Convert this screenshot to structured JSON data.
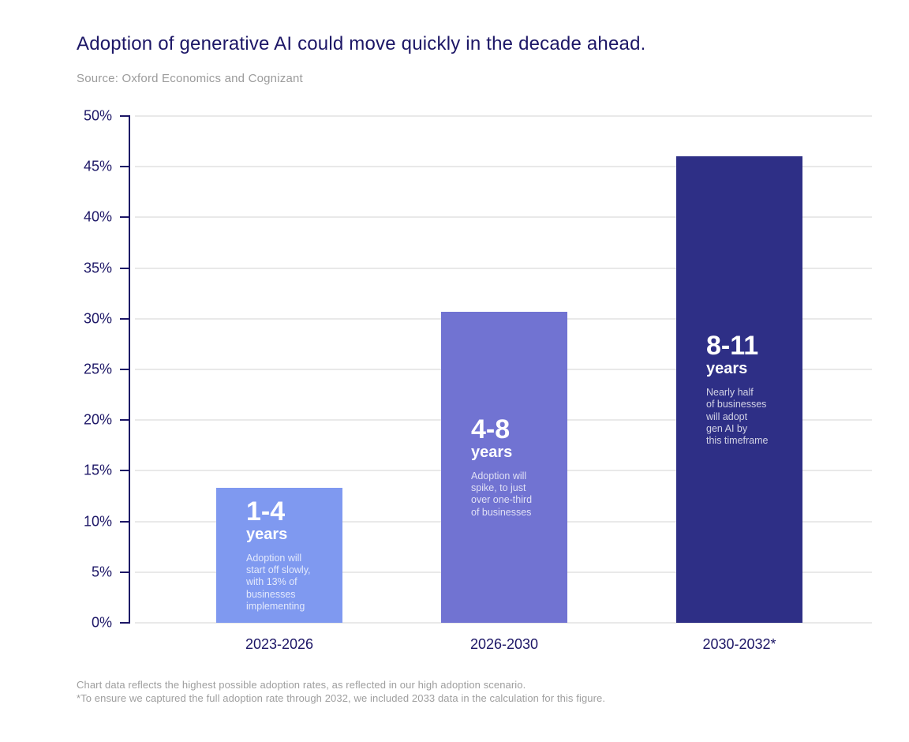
{
  "chart_data": {
    "type": "bar",
    "title": "Adoption of generative AI could move quickly  in the decade ahead.",
    "source": "Source: Oxford Economics and Cognizant",
    "categories": [
      "2023-2026",
      "2026-2030",
      "2030-2032*"
    ],
    "values": [
      13.3,
      30.7,
      46.0
    ],
    "ylim": [
      0,
      50
    ],
    "yticks": [
      "50%",
      "45%",
      "40%",
      "35%",
      "30%",
      "25%",
      "20%",
      "15%",
      "10%",
      "5%",
      "0%"
    ],
    "grid": true,
    "legend": false,
    "annotations": [
      {
        "range": "1-4",
        "unit": "years",
        "note": "Adoption will\nstart off slowly,\nwith 13% of\nbusinesses\nimplementing"
      },
      {
        "range": "4-8",
        "unit": "years",
        "note": "Adoption will\nspike, to just\nover one-third\nof businesses"
      },
      {
        "range": "8-11",
        "unit": "years",
        "note": "Nearly half\nof businesses\nwill adopt\ngen AI by\nthis timeframe"
      }
    ],
    "footnotes": [
      "Chart data reflects the highest possible adoption rates, as reflected in our high adoption scenario.",
      "*To ensure we captured the full adoption rate through 2032, we included 2033 data in the calculation for this figure."
    ]
  },
  "colors": {
    "bars": [
      "#7f99f0",
      "#7173d2",
      "#2e2f86"
    ],
    "axis": "#1c1666",
    "grid": "#e9e9e9",
    "muted": "#9b9b9b",
    "bar_text": "#ffffff"
  }
}
